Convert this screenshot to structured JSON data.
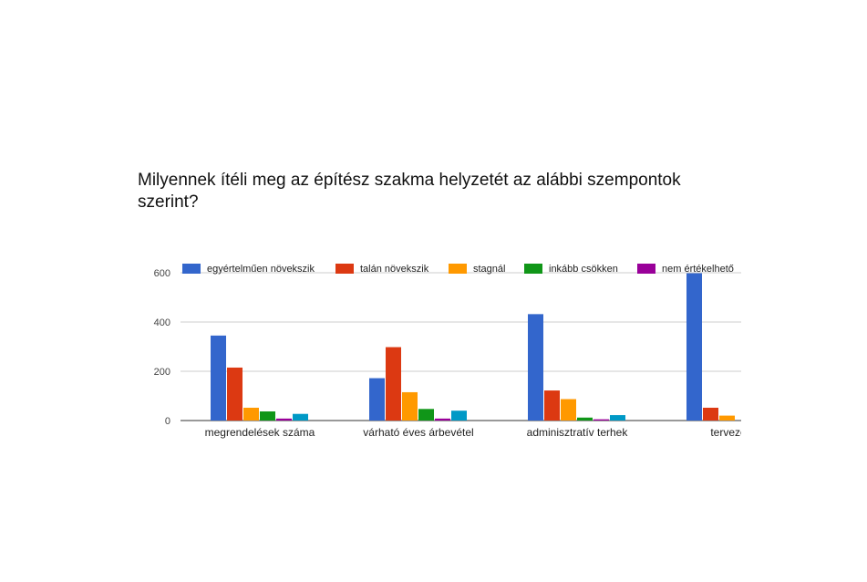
{
  "chart_data": {
    "type": "bar",
    "title": "Milyennek ítéli meg az építész szakma helyzetét az alábbi szempontok szerint?",
    "categories": [
      "megrendelések száma",
      "várható éves árbevétel",
      "adminisztratív terhek",
      "tervezői fe"
    ],
    "series": [
      {
        "name": "egyértelműen növekszik",
        "color": "#3366cc",
        "values": [
          345,
          172,
          432,
          598
        ]
      },
      {
        "name": "talán növekszik",
        "color": "#dc3912",
        "values": [
          215,
          298,
          122,
          52
        ]
      },
      {
        "name": "stagnál",
        "color": "#ff9900",
        "values": [
          52,
          115,
          87,
          20
        ]
      },
      {
        "name": "inkább csökken",
        "color": "#109618",
        "values": [
          37,
          47,
          12,
          0
        ]
      },
      {
        "name": "nem értékelhető",
        "color": "#990099",
        "values": [
          8,
          8,
          5,
          0
        ]
      },
      {
        "name": "",
        "color": "#0099c6",
        "values": [
          27,
          40,
          22,
          0
        ]
      }
    ],
    "ylim": [
      0,
      600
    ],
    "yticks": [
      0,
      200,
      400,
      600
    ],
    "grid": true,
    "legend_position": "top",
    "xlabel": "",
    "ylabel": ""
  }
}
